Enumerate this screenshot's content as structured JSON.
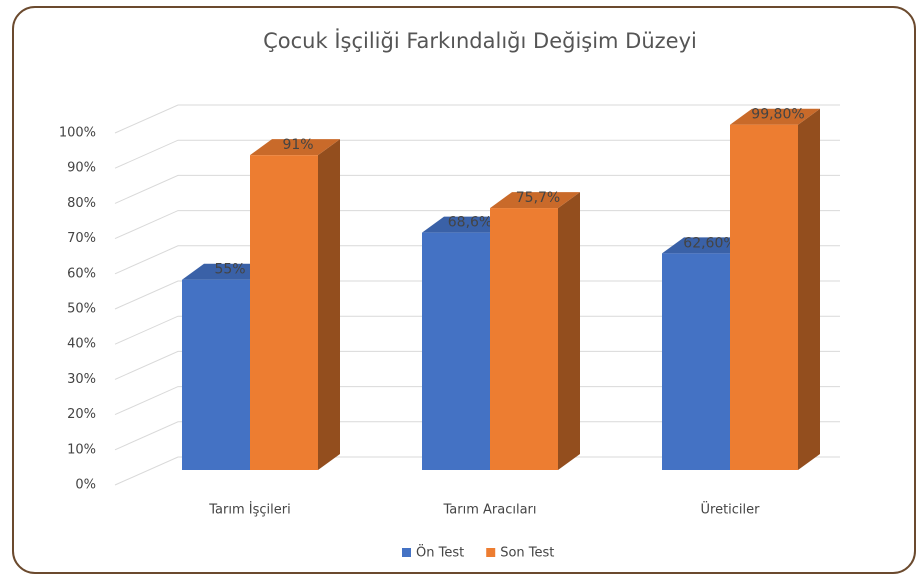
{
  "chart_data": {
    "type": "bar3d",
    "title": "Çocuk İşçiliği Farkındalığı Değişim Düzeyi",
    "categories": [
      "Tarım İşçileri",
      "Tarım Aracıları",
      "Üreticiler"
    ],
    "series": [
      {
        "name": "Ön Test",
        "color": "#4472c4",
        "values": [
          55,
          68.6,
          62.6
        ],
        "value_labels": [
          "55%",
          "68,6%",
          "62,60%"
        ]
      },
      {
        "name": "Son Test",
        "color": "#ed7d31",
        "values": [
          91,
          75.7,
          99.8
        ],
        "value_labels": [
          "91%",
          "75,7%",
          "99,80%"
        ]
      }
    ],
    "ylim": [
      0,
      100
    ],
    "yticks": [
      {
        "value": 0,
        "label": "0%"
      },
      {
        "value": 10,
        "label": "10%"
      },
      {
        "value": 20,
        "label": "20%"
      },
      {
        "value": 30,
        "label": "30%"
      },
      {
        "value": 40,
        "label": "40%"
      },
      {
        "value": 50,
        "label": "50%"
      },
      {
        "value": 60,
        "label": "60%"
      },
      {
        "value": 70,
        "label": "70%"
      },
      {
        "value": 80,
        "label": "80%"
      },
      {
        "value": 90,
        "label": "90%"
      },
      {
        "value": 100,
        "label": "100%"
      }
    ],
    "grid": true,
    "legend": "bottom"
  }
}
